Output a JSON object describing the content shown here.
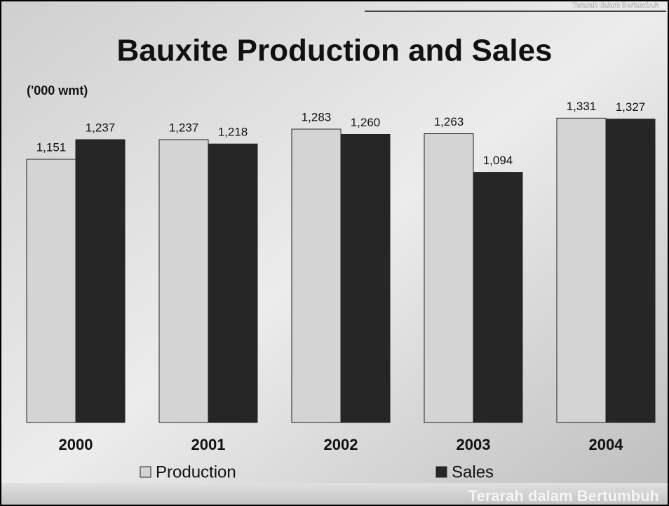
{
  "chart_data": {
    "type": "bar",
    "title": "Bauxite Production and Sales",
    "subtitle": "('000 wmt)",
    "categories": [
      "2000",
      "2001",
      "2002",
      "2003",
      "2004"
    ],
    "series": [
      {
        "name": "Production",
        "color": "#d4d4d4",
        "values": [
          1151,
          1237,
          1283,
          1263,
          1331
        ],
        "value_labels": [
          "1,151",
          "1,237",
          "1,283",
          "1,263",
          "1,331"
        ]
      },
      {
        "name": "Sales",
        "color": "#262626",
        "values": [
          1237,
          1218,
          1260,
          1094,
          1327
        ],
        "value_labels": [
          "1,237",
          "1,218",
          "1,260",
          "1,094",
          "1,327"
        ]
      }
    ]
  },
  "branding": {
    "header_tagline": "Terarah dalam Bertumbuh",
    "footer_tagline": "Terarah dalam Bertumbuh"
  }
}
